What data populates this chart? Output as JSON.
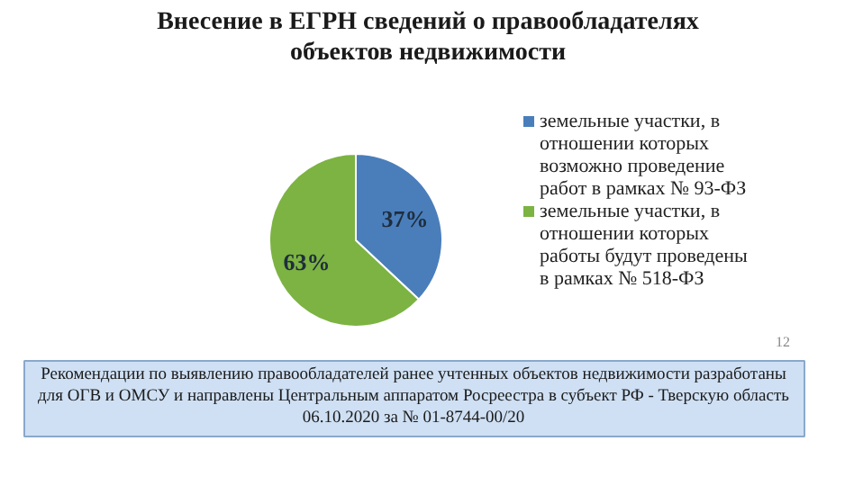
{
  "chart_data": {
    "type": "pie",
    "title": "Внесение в ЕГРН сведений о правообладателях объектов недвижимости",
    "categories": [
      "земельные участки, в отношении которых возможно проведение работ в рамках № 93-ФЗ",
      "земельные участки, в отношении которых работы будут проведены в рамках № 518-ФЗ"
    ],
    "values": [
      37,
      63
    ],
    "colors": [
      "#4a7ebb",
      "#7cb342"
    ],
    "value_labels": [
      "37%",
      "63%"
    ],
    "legend": "right",
    "annotations": [
      "12",
      "Рекомендации по выявлению правообладателей ранее учтенных объектов недвижимости разработаны для ОГВ и ОМСУ и направлены Центральным аппаратом Росреестра в субъект РФ - Тверскую область 06.10.2020 за № 01-8744-00/20"
    ]
  }
}
